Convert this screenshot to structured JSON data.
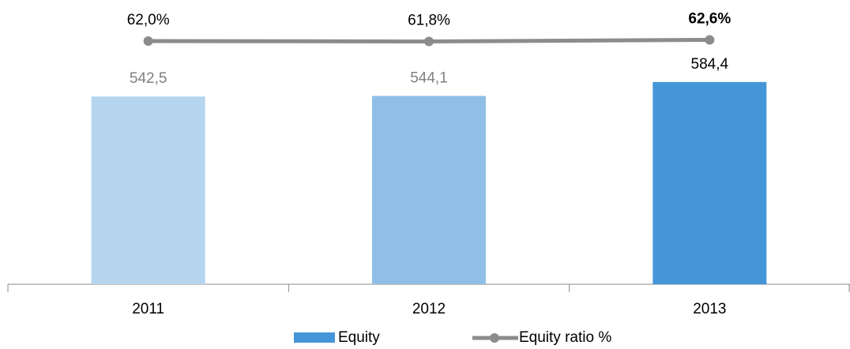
{
  "chart_data": {
    "type": "bar_line",
    "categories": [
      "2011",
      "2012",
      "2013"
    ],
    "ylim": [
      0,
      600
    ],
    "y2lim": [
      40,
      80
    ],
    "series": [
      {
        "name": "Equity",
        "type": "bar",
        "color": "#4596d8",
        "colors": [
          "#b5d5ef",
          "#8fbfe6",
          "#4596d8"
        ],
        "values": [
          542.5,
          544.1,
          584.4
        ],
        "value_labels": [
          "542,5",
          "544,1",
          "584,4"
        ],
        "value_label_colors": [
          "#808080",
          "#808080",
          "#000000"
        ]
      },
      {
        "name": "Equity ratio %",
        "type": "line",
        "axis": "y2",
        "color": "#8c8c8c",
        "values": [
          62.0,
          61.8,
          62.6
        ],
        "value_labels": [
          "62,0%",
          "61,8%",
          "62,6%"
        ],
        "value_label_colors": [
          "#000000",
          "#000000",
          "#000000"
        ]
      }
    ]
  }
}
